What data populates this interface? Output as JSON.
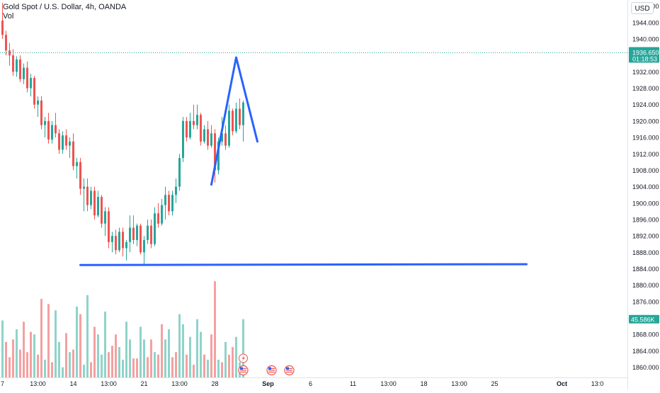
{
  "header": {
    "title": "Gold Spot / U.S. Dollar, 4h, OANDA",
    "volume_label": "Vol",
    "currency_button": "USD"
  },
  "colors": {
    "up": "#26a69a",
    "down": "#ef5350",
    "vol_up": "#8fd3c9",
    "vol_down": "#f5a0a0",
    "drawing": "#2962ff",
    "price_line": "#26a69a"
  },
  "icons": [
    "lightning-icon",
    "us-flag-icon"
  ],
  "chart_data": {
    "type": "candlestick",
    "symbol": "Gold Spot / U.S. Dollar",
    "interval": "4h",
    "source": "OANDA",
    "y_ticks": [
      "1860.000",
      "1864.000",
      "1868.000",
      "1872.000",
      "1876.000",
      "1880.000",
      "1884.000",
      "1888.000",
      "1892.000",
      "1896.000",
      "1900.000",
      "1904.000",
      "1908.000",
      "1912.000",
      "1916.000",
      "1920.000",
      "1924.000",
      "1928.000",
      "1932.000",
      "1936.000",
      "1940.000",
      "1944.000",
      "1948.000"
    ],
    "y_range": [
      1857.5,
      1949.5
    ],
    "x_ticks": [
      {
        "label": "7",
        "bar": 0
      },
      {
        "label": "13:00",
        "bar": 10
      },
      {
        "label": "14",
        "bar": 20
      },
      {
        "label": "13:00",
        "bar": 30
      },
      {
        "label": "21",
        "bar": 40
      },
      {
        "label": "13:00",
        "bar": 50
      },
      {
        "label": "28",
        "bar": 60
      },
      {
        "label": "Sep",
        "bar": 75
      },
      {
        "label": "6",
        "bar": 87
      },
      {
        "label": "11",
        "bar": 99
      },
      {
        "label": "13:00",
        "bar": 109
      },
      {
        "label": "18",
        "bar": 119
      },
      {
        "label": "13:00",
        "bar": 129
      },
      {
        "label": "25",
        "bar": 139
      },
      {
        "label": "Oct",
        "bar": 158
      },
      {
        "label": "13:0",
        "bar": 168
      }
    ],
    "last_price": "1936.650",
    "countdown": "01:18:53",
    "last_volume": "45.586K",
    "candles": [
      [
        1944.5,
        1948.8,
        1940.0,
        1941.0
      ],
      [
        1941.0,
        1942.0,
        1936.0,
        1937.2
      ],
      [
        1937.2,
        1939.0,
        1933.5,
        1936.0
      ],
      [
        1936.0,
        1937.5,
        1931.0,
        1932.0
      ],
      [
        1932.0,
        1935.8,
        1930.8,
        1935.0
      ],
      [
        1935.0,
        1936.0,
        1929.5,
        1930.2
      ],
      [
        1930.2,
        1934.0,
        1929.0,
        1933.0
      ],
      [
        1933.0,
        1934.5,
        1927.0,
        1928.0
      ],
      [
        1928.0,
        1931.5,
        1926.0,
        1930.5
      ],
      [
        1930.5,
        1931.0,
        1923.0,
        1924.0
      ],
      [
        1924.0,
        1926.0,
        1921.0,
        1925.0
      ],
      [
        1925.0,
        1926.0,
        1918.0,
        1919.0
      ],
      [
        1919.0,
        1921.0,
        1916.0,
        1920.0
      ],
      [
        1920.0,
        1922.0,
        1914.5,
        1915.5
      ],
      [
        1915.5,
        1920.0,
        1914.5,
        1919.0
      ],
      [
        1919.0,
        1922.0,
        1916.0,
        1917.0
      ],
      [
        1917.0,
        1918.0,
        1912.0,
        1913.0
      ],
      [
        1913.0,
        1917.5,
        1912.0,
        1916.5
      ],
      [
        1916.5,
        1918.0,
        1913.0,
        1914.0
      ],
      [
        1914.0,
        1916.0,
        1911.0,
        1915.0
      ],
      [
        1915.0,
        1917.0,
        1908.0,
        1909.0
      ],
      [
        1909.0,
        1911.0,
        1906.0,
        1910.0
      ],
      [
        1910.0,
        1911.0,
        1902.0,
        1903.5
      ],
      [
        1903.5,
        1906.0,
        1898.0,
        1904.0
      ],
      [
        1904.0,
        1906.0,
        1898.0,
        1899.5
      ],
      [
        1899.5,
        1904.0,
        1898.5,
        1903.0
      ],
      [
        1903.0,
        1904.0,
        1896.0,
        1897.0
      ],
      [
        1897.0,
        1903.0,
        1896.5,
        1901.5
      ],
      [
        1901.5,
        1902.0,
        1894.0,
        1895.0
      ],
      [
        1895.0,
        1899.0,
        1892.0,
        1898.0
      ],
      [
        1898.0,
        1899.0,
        1889.0,
        1890.5
      ],
      [
        1890.5,
        1893.0,
        1888.0,
        1892.0
      ],
      [
        1892.0,
        1893.5,
        1887.5,
        1888.5
      ],
      [
        1888.5,
        1894.0,
        1888.0,
        1893.0
      ],
      [
        1893.0,
        1894.0,
        1887.0,
        1889.0
      ],
      [
        1889.0,
        1891.0,
        1886.0,
        1890.5
      ],
      [
        1890.5,
        1897.0,
        1888.0,
        1894.0
      ],
      [
        1894.0,
        1897.0,
        1890.0,
        1891.0
      ],
      [
        1891.0,
        1895.0,
        1889.5,
        1894.5
      ],
      [
        1894.5,
        1895.0,
        1887.5,
        1888.0
      ],
      [
        1888.0,
        1892.0,
        1885.0,
        1891.0
      ],
      [
        1891.0,
        1896.0,
        1890.0,
        1894.5
      ],
      [
        1894.5,
        1896.0,
        1889.0,
        1890.0
      ],
      [
        1890.0,
        1899.0,
        1889.5,
        1897.5
      ],
      [
        1897.5,
        1900.0,
        1894.0,
        1895.0
      ],
      [
        1895.0,
        1901.0,
        1894.5,
        1899.5
      ],
      [
        1899.5,
        1904.0,
        1896.0,
        1902.0
      ],
      [
        1902.0,
        1903.0,
        1897.0,
        1898.0
      ],
      [
        1898.0,
        1903.0,
        1897.0,
        1902.0
      ],
      [
        1902.0,
        1906.0,
        1900.0,
        1904.0
      ],
      [
        1904.0,
        1912.0,
        1903.0,
        1911.0
      ],
      [
        1911.0,
        1921.0,
        1910.0,
        1920.0
      ],
      [
        1920.0,
        1921.0,
        1915.0,
        1916.0
      ],
      [
        1916.0,
        1922.0,
        1915.5,
        1920.0
      ],
      [
        1920.0,
        1924.0,
        1918.0,
        1919.0
      ],
      [
        1919.0,
        1924.0,
        1918.0,
        1921.5
      ],
      [
        1921.5,
        1922.0,
        1914.0,
        1915.0
      ],
      [
        1915.0,
        1919.0,
        1914.5,
        1918.0
      ],
      [
        1918.0,
        1920.0,
        1913.0,
        1914.0
      ],
      [
        1914.0,
        1919.0,
        1913.5,
        1917.0
      ],
      [
        1917.0,
        1918.0,
        1905.0,
        1908.0
      ],
      [
        1908.0,
        1916.0,
        1907.0,
        1915.0
      ],
      [
        1915.0,
        1921.0,
        1914.0,
        1917.0
      ],
      [
        1917.0,
        1919.0,
        1913.0,
        1914.0
      ],
      [
        1914.0,
        1924.0,
        1913.5,
        1922.5
      ],
      [
        1922.5,
        1923.0,
        1916.5,
        1917.5
      ],
      [
        1917.5,
        1924.5,
        1917.0,
        1923.0
      ],
      [
        1923.0,
        1925.5,
        1918.0,
        1919.0
      ],
      [
        1919.0,
        1925.0,
        1915.0,
        1924.5
      ]
    ],
    "volumes": [
      [
        45,
        1
      ],
      [
        28,
        0
      ],
      [
        16,
        0
      ],
      [
        30,
        0
      ],
      [
        38,
        1
      ],
      [
        22,
        0
      ],
      [
        44,
        0
      ],
      [
        20,
        0
      ],
      [
        36,
        0
      ],
      [
        34,
        1
      ],
      [
        18,
        0
      ],
      [
        62,
        0
      ],
      [
        14,
        1
      ],
      [
        58,
        0
      ],
      [
        12,
        0
      ],
      [
        53,
        1
      ],
      [
        28,
        1
      ],
      [
        8,
        1
      ],
      [
        35,
        0
      ],
      [
        20,
        1
      ],
      [
        22,
        0
      ],
      [
        56,
        1
      ],
      [
        50,
        0
      ],
      [
        10,
        1
      ],
      [
        65,
        1
      ],
      [
        12,
        0
      ],
      [
        40,
        0
      ],
      [
        34,
        1
      ],
      [
        18,
        1
      ],
      [
        52,
        1
      ],
      [
        20,
        0
      ],
      [
        25,
        0
      ],
      [
        34,
        0
      ],
      [
        24,
        1
      ],
      [
        14,
        1
      ],
      [
        44,
        1
      ],
      [
        30,
        1
      ],
      [
        15,
        0
      ],
      [
        15,
        0
      ],
      [
        40,
        1
      ],
      [
        30,
        1
      ],
      [
        16,
        0
      ],
      [
        30,
        0
      ],
      [
        20,
        1
      ],
      [
        18,
        0
      ],
      [
        42,
        0
      ],
      [
        30,
        1
      ],
      [
        38,
        1
      ],
      [
        16,
        0
      ],
      [
        20,
        0
      ],
      [
        50,
        1
      ],
      [
        42,
        1
      ],
      [
        18,
        0
      ],
      [
        32,
        1
      ],
      [
        10,
        0
      ],
      [
        46,
        1
      ],
      [
        36,
        1
      ],
      [
        18,
        0
      ],
      [
        14,
        1
      ],
      [
        34,
        0
      ],
      [
        76,
        0
      ],
      [
        14,
        1
      ],
      [
        12,
        0
      ],
      [
        28,
        1
      ],
      [
        18,
        0
      ],
      [
        24,
        0
      ],
      [
        32,
        1
      ],
      [
        12,
        1
      ],
      [
        46,
        1
      ]
    ],
    "drawings": [
      {
        "type": "polyline",
        "name": "peak-line",
        "points": [
          [
            59,
            1904.5
          ],
          [
            66,
            1935.5
          ],
          [
            72,
            1915.0
          ]
        ]
      },
      {
        "type": "horizontal",
        "name": "support-line",
        "points": [
          [
            22,
            1884.9
          ],
          [
            148,
            1885.1
          ]
        ]
      }
    ]
  }
}
